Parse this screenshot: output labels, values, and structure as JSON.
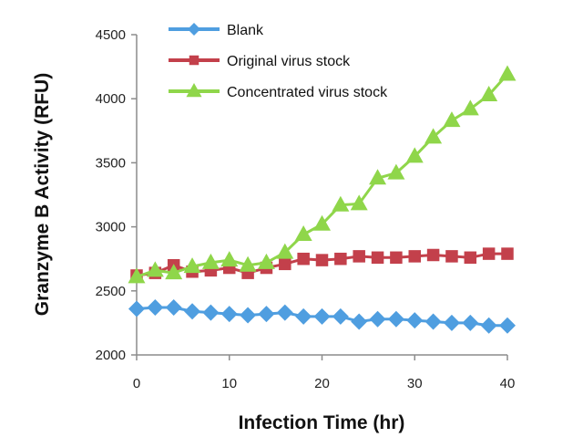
{
  "chart_data": {
    "type": "line",
    "title": "",
    "xlabel": "Infection Time (hr)",
    "ylabel": "Granzyme B Activity (RFU)",
    "xlim": [
      0,
      40
    ],
    "ylim": [
      2000,
      4500
    ],
    "xticks": [
      0,
      10,
      20,
      30,
      40
    ],
    "yticks": [
      2000,
      2500,
      3000,
      3500,
      4000,
      4500
    ],
    "grid": false,
    "legend_position": "top-left",
    "x": [
      0,
      2,
      4,
      6,
      8,
      10,
      12,
      14,
      16,
      18,
      20,
      22,
      24,
      26,
      28,
      30,
      32,
      34,
      36,
      38,
      40
    ],
    "series": [
      {
        "name": "Blank",
        "color": "#4f9ee0",
        "marker": "diamond",
        "values": [
          2360,
          2370,
          2370,
          2340,
          2330,
          2320,
          2310,
          2320,
          2330,
          2300,
          2300,
          2300,
          2260,
          2280,
          2280,
          2270,
          2260,
          2250,
          2250,
          2230,
          2230
        ]
      },
      {
        "name": "Original virus stock",
        "color": "#c3404b",
        "marker": "square",
        "values": [
          2620,
          2640,
          2700,
          2650,
          2660,
          2680,
          2640,
          2680,
          2710,
          2750,
          2740,
          2750,
          2770,
          2760,
          2760,
          2770,
          2780,
          2770,
          2760,
          2790,
          2790
        ]
      },
      {
        "name": "Concentrated virus stock",
        "color": "#8fd64a",
        "marker": "triangle",
        "values": [
          2610,
          2660,
          2640,
          2690,
          2720,
          2740,
          2700,
          2720,
          2800,
          2940,
          3020,
          3170,
          3180,
          3380,
          3420,
          3550,
          3700,
          3830,
          3920,
          4030,
          4190
        ]
      }
    ]
  }
}
